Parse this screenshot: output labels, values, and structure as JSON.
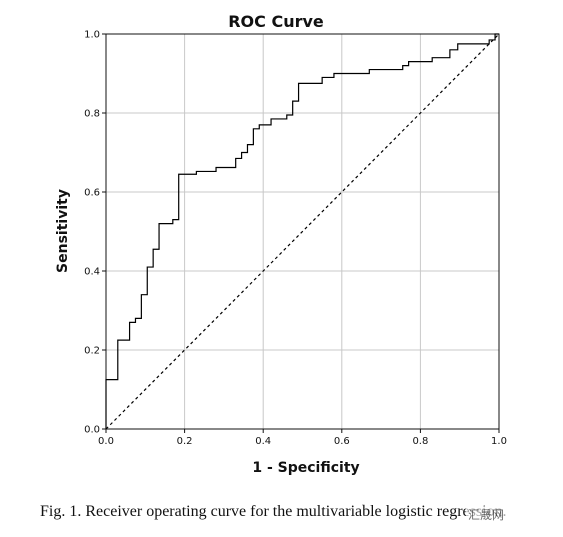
{
  "chart_data": {
    "type": "line",
    "title": "ROC Curve",
    "xlabel": "1 - Specificity",
    "ylabel": "Sensitivity",
    "xlim": [
      0,
      1
    ],
    "ylim": [
      0,
      1
    ],
    "x_ticks": [
      "0.0",
      "0.2",
      "0.4",
      "0.6",
      "0.8",
      "1.0"
    ],
    "y_ticks": [
      "0.0",
      "0.2",
      "0.4",
      "0.6",
      "0.8",
      "1.0"
    ],
    "grid": true,
    "series": [
      {
        "style": "solid",
        "color": "#000000",
        "points": [
          [
            0.0,
            0.0
          ],
          [
            0.0,
            0.125
          ],
          [
            0.03,
            0.125
          ],
          [
            0.03,
            0.225
          ],
          [
            0.06,
            0.225
          ],
          [
            0.06,
            0.27
          ],
          [
            0.075,
            0.27
          ],
          [
            0.075,
            0.28
          ],
          [
            0.09,
            0.28
          ],
          [
            0.09,
            0.34
          ],
          [
            0.105,
            0.34
          ],
          [
            0.105,
            0.41
          ],
          [
            0.12,
            0.41
          ],
          [
            0.12,
            0.455
          ],
          [
            0.135,
            0.455
          ],
          [
            0.135,
            0.52
          ],
          [
            0.17,
            0.52
          ],
          [
            0.17,
            0.53
          ],
          [
            0.185,
            0.53
          ],
          [
            0.185,
            0.645
          ],
          [
            0.23,
            0.645
          ],
          [
            0.23,
            0.652
          ],
          [
            0.28,
            0.652
          ],
          [
            0.28,
            0.662
          ],
          [
            0.33,
            0.662
          ],
          [
            0.33,
            0.685
          ],
          [
            0.345,
            0.685
          ],
          [
            0.345,
            0.7
          ],
          [
            0.36,
            0.7
          ],
          [
            0.36,
            0.72
          ],
          [
            0.375,
            0.72
          ],
          [
            0.375,
            0.76
          ],
          [
            0.39,
            0.76
          ],
          [
            0.39,
            0.77
          ],
          [
            0.42,
            0.77
          ],
          [
            0.42,
            0.785
          ],
          [
            0.46,
            0.785
          ],
          [
            0.46,
            0.795
          ],
          [
            0.475,
            0.795
          ],
          [
            0.475,
            0.83
          ],
          [
            0.49,
            0.83
          ],
          [
            0.49,
            0.875
          ],
          [
            0.55,
            0.875
          ],
          [
            0.55,
            0.89
          ],
          [
            0.58,
            0.89
          ],
          [
            0.58,
            0.9
          ],
          [
            0.67,
            0.9
          ],
          [
            0.67,
            0.91
          ],
          [
            0.755,
            0.91
          ],
          [
            0.755,
            0.92
          ],
          [
            0.77,
            0.92
          ],
          [
            0.77,
            0.93
          ],
          [
            0.83,
            0.93
          ],
          [
            0.83,
            0.94
          ],
          [
            0.875,
            0.94
          ],
          [
            0.875,
            0.96
          ],
          [
            0.895,
            0.96
          ],
          [
            0.895,
            0.975
          ],
          [
            0.975,
            0.975
          ],
          [
            0.975,
            0.985
          ],
          [
            0.99,
            0.985
          ],
          [
            0.99,
            1.0
          ],
          [
            1.0,
            1.0
          ]
        ]
      },
      {
        "style": "dashed",
        "color": "#000000",
        "points": [
          [
            0,
            0
          ],
          [
            1,
            1
          ]
        ]
      }
    ]
  },
  "caption": "Fig. 1.  Receiver operating curve for the multivariable logistic regression.",
  "watermark": "汇晟网"
}
